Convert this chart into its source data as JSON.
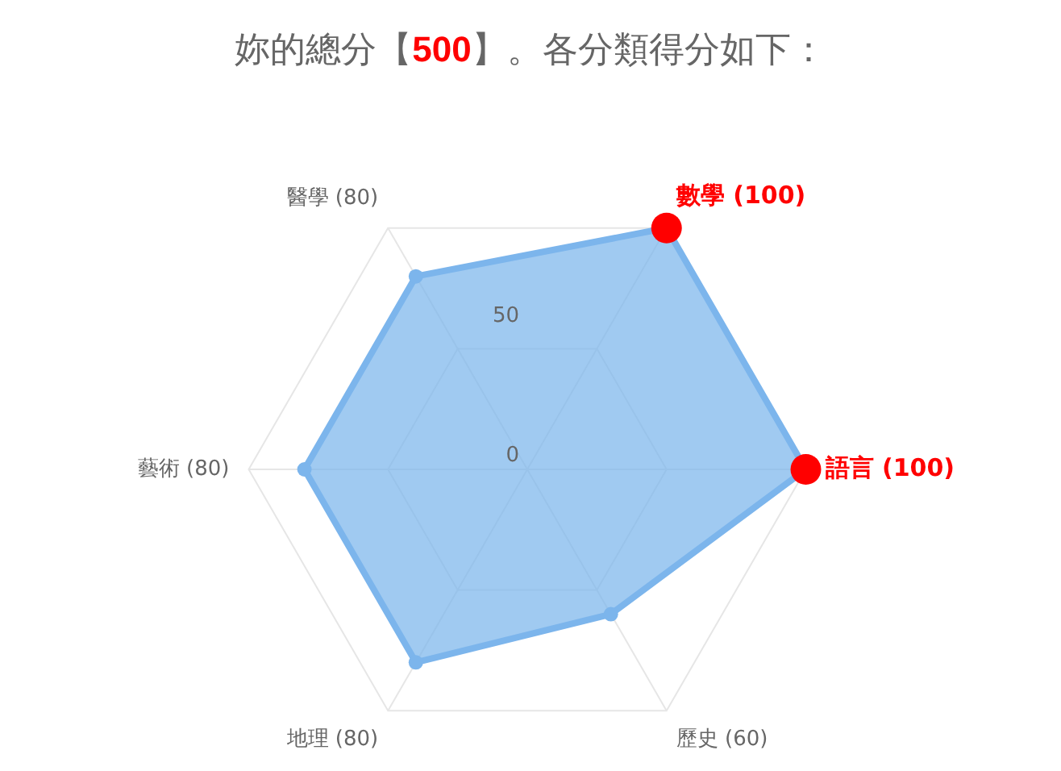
{
  "chart_data": {
    "type": "radar",
    "title": "妳的總分【500】。各分類得分如下：",
    "categories": [
      "數學 (100)",
      "語言 (100)",
      "歷史 (60)",
      "地理 (80)",
      "藝術 (80)",
      "醫學 (80)"
    ],
    "series": [
      {
        "type": "radar",
        "color": "#7cb5ec",
        "values": [
          100,
          100,
          60,
          80,
          80,
          80
        ],
        "colors": [
          "#ff0000",
          "#ff0000",
          "#7cb5ec",
          "#7cb5ec",
          "#7cb5ec",
          "#7cb5ec"
        ]
      }
    ],
    "ylim": [
      0,
      100
    ],
    "yticks": [
      0,
      50
    ],
    "grid": true,
    "legend": false,
    "marker": "circle"
  }
}
